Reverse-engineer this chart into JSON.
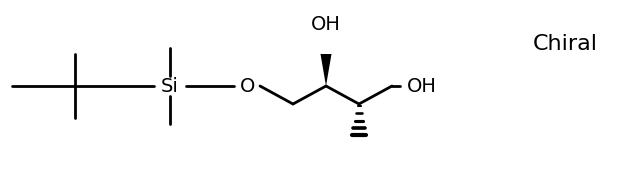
{
  "background": "#ffffff",
  "line_color": "#000000",
  "line_width": 2.0,
  "fig_width": 6.4,
  "fig_height": 1.74,
  "dpi": 100,
  "chiral_label": "Chiral",
  "si_label": "Si",
  "o_label": "O",
  "oh_label": "OH"
}
